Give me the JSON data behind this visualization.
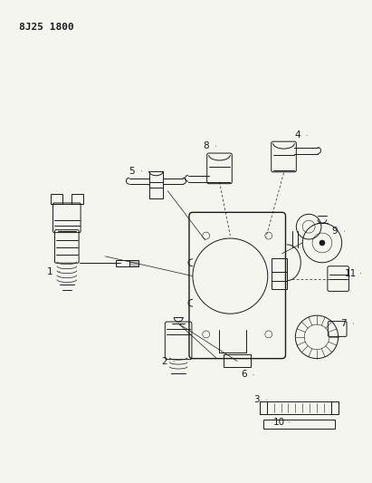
{
  "title": "8J25 1800",
  "bg_color": "#f5f5f0",
  "line_color": "#1a1a1a",
  "fig_width": 4.11,
  "fig_height": 5.33,
  "dpi": 100
}
